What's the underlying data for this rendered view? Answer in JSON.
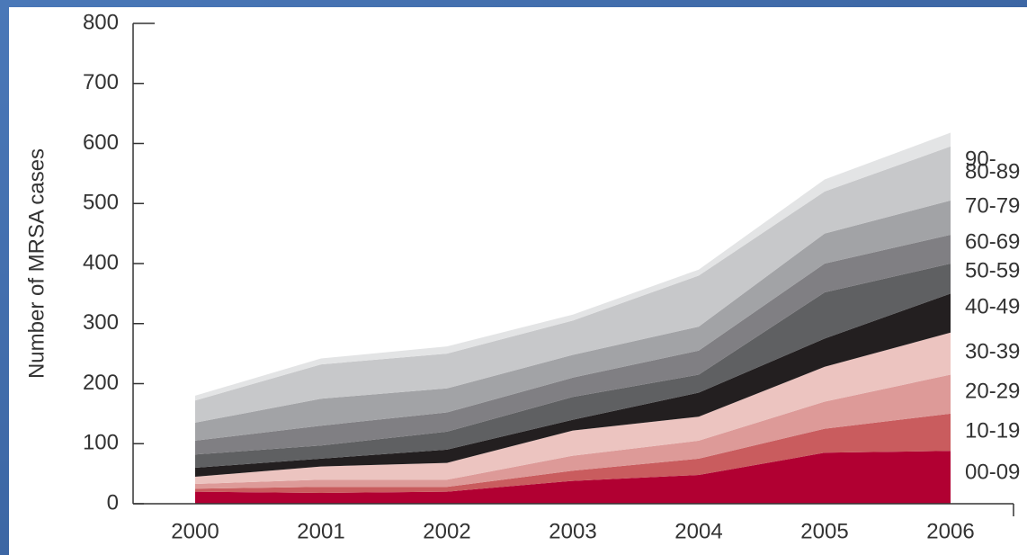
{
  "chart_data": {
    "type": "stacked_area",
    "y_label": "Number of MRSA cases",
    "x": [
      2000,
      2001,
      2002,
      2003,
      2004,
      2005,
      2006
    ],
    "xlim": [
      2000,
      2006
    ],
    "ylim": [
      0,
      800
    ],
    "yticks": [
      0,
      100,
      200,
      300,
      400,
      500,
      600,
      700,
      800
    ],
    "series": [
      {
        "name": "00-09",
        "color": "#b10032",
        "values": [
          20,
          18,
          20,
          38,
          48,
          85,
          88
        ]
      },
      {
        "name": "10-19",
        "color": "#c95c5e",
        "values": [
          5,
          10,
          8,
          17,
          27,
          40,
          62
        ]
      },
      {
        "name": "20-29",
        "color": "#dd9a98",
        "values": [
          8,
          12,
          12,
          25,
          30,
          45,
          65
        ]
      },
      {
        "name": "30-39",
        "color": "#ecc4c0",
        "values": [
          12,
          22,
          28,
          42,
          40,
          58,
          70
        ]
      },
      {
        "name": "40-49",
        "color": "#231f20",
        "values": [
          15,
          13,
          22,
          18,
          40,
          47,
          65
        ]
      },
      {
        "name": "50-59",
        "color": "#5f6062",
        "values": [
          22,
          22,
          30,
          38,
          30,
          77,
          50
        ]
      },
      {
        "name": "60-69",
        "color": "#807f83",
        "values": [
          23,
          33,
          32,
          32,
          40,
          48,
          48
        ]
      },
      {
        "name": "70-79",
        "color": "#a2a3a6",
        "values": [
          30,
          45,
          40,
          38,
          40,
          50,
          57
        ]
      },
      {
        "name": "80-89",
        "color": "#c7c8ca",
        "values": [
          37,
          57,
          58,
          57,
          85,
          70,
          90
        ]
      },
      {
        "name": "90-",
        "color": "#e3e4e5",
        "values": [
          8,
          10,
          12,
          10,
          10,
          20,
          23
        ]
      }
    ]
  }
}
